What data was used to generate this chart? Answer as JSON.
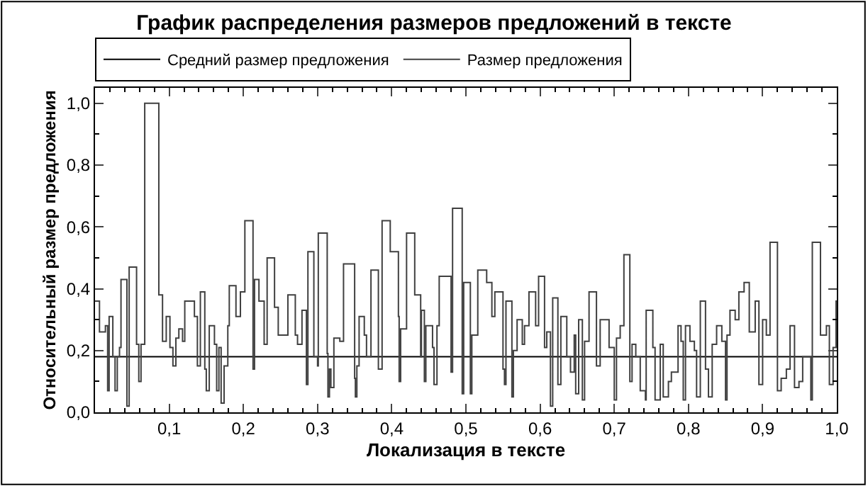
{
  "chart_data": {
    "type": "step",
    "title": "График распределения размеров предложений в тексте",
    "xlabel": "Локализация в тексте",
    "ylabel": "Относительный размер предложения",
    "xlim": [
      0,
      1
    ],
    "ylim": [
      0,
      1.05
    ],
    "xticks": [
      {
        "value": 0.1,
        "label": "0,1"
      },
      {
        "value": 0.2,
        "label": "0,2"
      },
      {
        "value": 0.3,
        "label": "0,3"
      },
      {
        "value": 0.4,
        "label": "0,4"
      },
      {
        "value": 0.5,
        "label": "0,5"
      },
      {
        "value": 0.6,
        "label": "0,6"
      },
      {
        "value": 0.7,
        "label": "0,7"
      },
      {
        "value": 0.8,
        "label": "0,8"
      },
      {
        "value": 0.9,
        "label": "0,9"
      },
      {
        "value": 1.0,
        "label": "1,0"
      }
    ],
    "yticks": [
      {
        "value": 0,
        "label": "0,0"
      },
      {
        "value": 0.2,
        "label": "0,2"
      },
      {
        "value": 0.4,
        "label": "0,4"
      },
      {
        "value": 0.6,
        "label": "0,6"
      },
      {
        "value": 0.8,
        "label": "0,8"
      },
      {
        "value": 1.0,
        "label": "1,0"
      }
    ],
    "legend": "top",
    "marker": "none",
    "series": [
      {
        "name": "Средний размер предложения",
        "type": "line",
        "color": "#000000",
        "x": [
          0,
          1
        ],
        "values": [
          0.18,
          0.18
        ]
      },
      {
        "name": "Размер предложения",
        "color": "#404040",
        "x": [
          0,
          0.006,
          0.014,
          0.017,
          0.019,
          0.024,
          0.027,
          0.03,
          0.033,
          0.035,
          0.043,
          0.046,
          0.056,
          0.059,
          0.062,
          0.067,
          0.086,
          0.091,
          0.096,
          0.101,
          0.105,
          0.109,
          0.113,
          0.118,
          0.121,
          0.134,
          0.138,
          0.142,
          0.148,
          0.15,
          0.154,
          0.161,
          0.164,
          0.167,
          0.17,
          0.174,
          0.179,
          0.181,
          0.19,
          0.196,
          0.202,
          0.213,
          0.215,
          0.221,
          0.228,
          0.232,
          0.242,
          0.247,
          0.26,
          0.27,
          0.273,
          0.279,
          0.285,
          0.287,
          0.295,
          0.3,
          0.301,
          0.313,
          0.314,
          0.316,
          0.318,
          0.322,
          0.33,
          0.335,
          0.35,
          0.351,
          0.353,
          0.356,
          0.363,
          0.366,
          0.372,
          0.382,
          0.387,
          0.398,
          0.409,
          0.41,
          0.412,
          0.42,
          0.431,
          0.439,
          0.44,
          0.444,
          0.446,
          0.455,
          0.457,
          0.461,
          0.464,
          0.48,
          0.482,
          0.495,
          0.497,
          0.506,
          0.508,
          0.516,
          0.52,
          0.528,
          0.535,
          0.539,
          0.55,
          0.552,
          0.554,
          0.562,
          0.564,
          0.569,
          0.576,
          0.579,
          0.585,
          0.594,
          0.598,
          0.606,
          0.609,
          0.614,
          0.617,
          0.624,
          0.628,
          0.636,
          0.641,
          0.646,
          0.648,
          0.652,
          0.657,
          0.66,
          0.666,
          0.676,
          0.681,
          0.693,
          0.7,
          0.703,
          0.708,
          0.713,
          0.721,
          0.724,
          0.729,
          0.735,
          0.742,
          0.743,
          0.752,
          0.755,
          0.762,
          0.766,
          0.773,
          0.777,
          0.786,
          0.79,
          0.793,
          0.796,
          0.802,
          0.808,
          0.811,
          0.816,
          0.823,
          0.827,
          0.832,
          0.838,
          0.845,
          0.85,
          0.852,
          0.856,
          0.863,
          0.868,
          0.875,
          0.882,
          0.89,
          0.895,
          0.9,
          0.905,
          0.91,
          0.92,
          0.925,
          0.932,
          0.937,
          0.943,
          0.949,
          0.954,
          0.965,
          0.967,
          0.978,
          0.986,
          0.99,
          0.995,
          0.999,
          1.0
        ],
        "values": [
          0.36,
          0.26,
          0.28,
          0.07,
          0.31,
          0.18,
          0.07,
          0.18,
          0.21,
          0.43,
          0.02,
          0.47,
          0.22,
          0.1,
          0.22,
          1.0,
          0.38,
          0.23,
          0.31,
          0.21,
          0.15,
          0.24,
          0.27,
          0.23,
          0.36,
          0.31,
          0.15,
          0.39,
          0.14,
          0.07,
          0.28,
          0.22,
          0.07,
          0.21,
          0.03,
          0.15,
          0.28,
          0.41,
          0.31,
          0.39,
          0.62,
          0.14,
          0.43,
          0.36,
          0.22,
          0.5,
          0.34,
          0.25,
          0.38,
          0.25,
          0.22,
          0.33,
          0.09,
          0.52,
          0.18,
          0.15,
          0.58,
          0.19,
          0.05,
          0.14,
          0.08,
          0.24,
          0.23,
          0.48,
          0.11,
          0.05,
          0.15,
          0.31,
          0.25,
          0.18,
          0.46,
          0.14,
          0.62,
          0.52,
          0.31,
          0.1,
          0.27,
          0.58,
          0.38,
          0.18,
          0.33,
          0.1,
          0.28,
          0.21,
          0.09,
          0.28,
          0.44,
          0.13,
          0.66,
          0.06,
          0.42,
          0.06,
          0.25,
          0.46,
          0.46,
          0.42,
          0.31,
          0.39,
          0.14,
          0.09,
          0.36,
          0.05,
          0.2,
          0.3,
          0.22,
          0.28,
          0.39,
          0.28,
          0.44,
          0.21,
          0.26,
          0.02,
          0.37,
          0.09,
          0.31,
          0.18,
          0.13,
          0.25,
          0.06,
          0.3,
          0.04,
          0.23,
          0.39,
          0.15,
          0.3,
          0.21,
          0.04,
          0.24,
          0.28,
          0.51,
          0.1,
          0.22,
          0.18,
          0.07,
          0.04,
          0.33,
          0.21,
          0.04,
          0.22,
          0.05,
          0.1,
          0.13,
          0.28,
          0.23,
          0.04,
          0.28,
          0.23,
          0.2,
          0.05,
          0.36,
          0.14,
          0.05,
          0.22,
          0.28,
          0.23,
          0.04,
          0.25,
          0.33,
          0.3,
          0.39,
          0.42,
          0.26,
          0.36,
          0.09,
          0.3,
          0.25,
          0.55,
          0.07,
          0.11,
          0.14,
          0.28,
          0.08,
          0.1,
          0.18,
          0.04,
          0.55,
          0.25,
          0.28,
          0.09,
          0.21,
          0.36,
          0.36
        ]
      }
    ]
  }
}
